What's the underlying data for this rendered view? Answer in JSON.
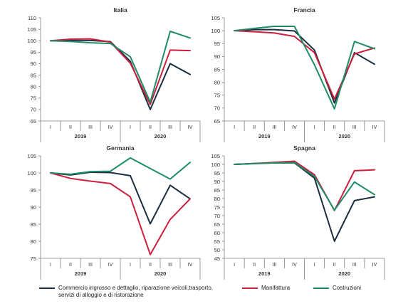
{
  "colors": {
    "commercio": "#1b2e42",
    "manifattura": "#cc1f3c",
    "costruzioni": "#1f8c66",
    "axis": "#7f7f7f",
    "text": "#333333"
  },
  "legend": [
    {
      "key": "commercio",
      "label_line1": "Commercio ingrosso e  dettaglio, riparazione veicoli,trasporto,",
      "label_line2": "servizi di alloggio e di ristorazione"
    },
    {
      "key": "manifattura",
      "label_line1": "Manifattura",
      "label_line2": ""
    },
    {
      "key": "costruzioni",
      "label_line1": "Costruzioni",
      "label_line2": ""
    }
  ],
  "chart_data": [
    {
      "type": "line",
      "title": "Italia",
      "categories": [
        "I",
        "II",
        "III",
        "IV",
        "I",
        "II",
        "III",
        "IV"
      ],
      "years": [
        "2019",
        "2020"
      ],
      "ylim": [
        65,
        110
      ],
      "yticks": [
        65,
        70,
        75,
        80,
        85,
        90,
        95,
        100,
        105,
        110
      ],
      "series": [
        {
          "name": "Commercio ingrosso e  dettaglio, riparazione veicoli,trasporto, servizi di alloggio e di ristorazione",
          "key": "commercio",
          "values": [
            100,
            100.2,
            100.1,
            99.6,
            91,
            70,
            90,
            85.3
          ]
        },
        {
          "name": "Manifattura",
          "key": "manifattura",
          "values": [
            100,
            100.7,
            100.8,
            99.4,
            90.2,
            72.2,
            95.9,
            95.7
          ]
        },
        {
          "name": "Costruzioni",
          "key": "costruzioni",
          "values": [
            100,
            99.7,
            99.1,
            98.8,
            93,
            73.2,
            104.1,
            101.2
          ]
        }
      ]
    },
    {
      "type": "line",
      "title": "Francia",
      "categories": [
        "I",
        "II",
        "III",
        "IV",
        "I",
        "II",
        "III",
        "IV"
      ],
      "years": [
        "2019",
        "2020"
      ],
      "ylim": [
        65,
        105
      ],
      "yticks": [
        65,
        70,
        75,
        80,
        85,
        90,
        95,
        100,
        105
      ],
      "series": [
        {
          "name": "Commercio ingrosso e  dettaglio, riparazione veicoli,trasporto, servizi di alloggio e di ristorazione",
          "key": "commercio",
          "values": [
            100,
            100.4,
            100.4,
            99.9,
            92.5,
            72,
            91.5,
            87
          ]
        },
        {
          "name": "Manifattura",
          "key": "manifattura",
          "values": [
            100,
            99.6,
            99.1,
            97.8,
            91.5,
            73.5,
            91,
            93.3
          ]
        },
        {
          "name": "Costruzioni",
          "key": "costruzioni",
          "values": [
            100,
            100.9,
            101.7,
            101.7,
            86.8,
            69.7,
            95.8,
            93
          ]
        }
      ]
    },
    {
      "type": "line",
      "title": "Germania",
      "categories": [
        "I",
        "II",
        "III",
        "IV",
        "I",
        "II",
        "III",
        "IV"
      ],
      "years": [
        "2019",
        "2020"
      ],
      "ylim": [
        75,
        105
      ],
      "yticks": [
        75,
        80,
        85,
        90,
        95,
        100,
        105
      ],
      "series": [
        {
          "name": "Commercio ingrosso e  dettaglio, riparazione veicoli,trasporto, servizi di alloggio e di ristorazione",
          "key": "commercio",
          "values": [
            100,
            99.4,
            100.2,
            100.1,
            99.2,
            85.1,
            96.4,
            92.4
          ]
        },
        {
          "name": "Manifattura",
          "key": "manifattura",
          "values": [
            100,
            98.4,
            97.6,
            96.9,
            93,
            76.1,
            86.4,
            92.4
          ]
        },
        {
          "name": "Costruzioni",
          "key": "costruzioni",
          "values": [
            100,
            99.6,
            100.4,
            100.5,
            104.4,
            101.3,
            98.2,
            103.1
          ]
        }
      ]
    },
    {
      "type": "line",
      "title": "Spagna",
      "categories": [
        "I",
        "II",
        "III",
        "IV",
        "I",
        "II",
        "III",
        "IV"
      ],
      "years": [
        "2019",
        "2020"
      ],
      "ylim": [
        45,
        105
      ],
      "yticks": [
        45,
        50,
        55,
        60,
        65,
        70,
        75,
        80,
        85,
        90,
        95,
        100,
        105
      ],
      "series": [
        {
          "name": "Commercio ingrosso e  dettaglio, riparazione veicoli,trasporto, servizi di alloggio e di ristorazione",
          "key": "commercio",
          "values": [
            100,
            100.5,
            100.9,
            100.9,
            92,
            55,
            78.8,
            81
          ]
        },
        {
          "name": "Manifattura",
          "key": "manifattura",
          "values": [
            100,
            100.5,
            101.2,
            101.9,
            94,
            73,
            96.3,
            96.8
          ]
        },
        {
          "name": "Costruzioni",
          "key": "costruzioni",
          "values": [
            100,
            100.4,
            100.9,
            101.1,
            93,
            73.2,
            89.7,
            82.3
          ]
        }
      ]
    }
  ]
}
